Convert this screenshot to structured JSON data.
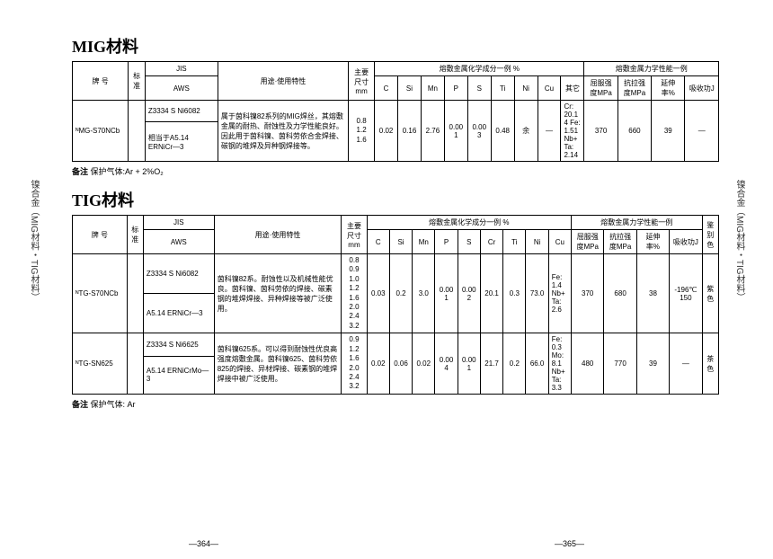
{
  "side_label_left": "镍合金（MIG材料・TIG材料）",
  "side_label_right": "镍合金（MIG材料・TIG材料）",
  "page_left": "—364—",
  "page_right": "—365—",
  "mig": {
    "title": "MIG材料",
    "note_label": "备注",
    "note_text": "保护气体:Ar + 2%O₂",
    "headers": {
      "brand": "牌 号",
      "std": "标准",
      "jis": "JIS",
      "aws": "AWS",
      "usage": "用途·使用特性",
      "size": "主要尺寸mm",
      "chem_group": "熔敷金属化学成分一例 %",
      "mech_group": "熔敷金属力学性能一例",
      "c": "C",
      "si": "Si",
      "mn": "Mn",
      "p": "P",
      "s": "S",
      "ti": "Ti",
      "ni": "Ni",
      "cu": "Cu",
      "other": "其它",
      "yield": "屈服强度MPa",
      "tensile": "抗拉强度MPa",
      "elong": "延伸率%",
      "impact": "吸收功J"
    },
    "row": {
      "brand": "ᴺMG-S70NCb",
      "jis": "Z3334 S Ni6082",
      "aws": "相当于A5.14 ERNiCr—3",
      "usage": "属于茵科镍82系列的MIG焊丝，其熔敷金属的耐热、耐蚀性及力学性能良好。因此用于茵科镍、茵科劳依合金焊接、碳钢的堆焊及异种钢焊接等。",
      "size": "0.8\n1.2\n1.6",
      "c": "0.02",
      "si": "0.16",
      "mn": "2.76",
      "p": "0.001",
      "s": "0.003",
      "ti": "0.48",
      "ni": "余",
      "cu": "—",
      "other": "Cr: 20.14 Fe: 1.51 Nb+Ta: 2.14",
      "yield": "370",
      "tensile": "660",
      "elong": "39",
      "impact": "—"
    }
  },
  "tig": {
    "title": "TIG材料",
    "note_label": "备注",
    "note_text": "保护气体: Ar",
    "headers": {
      "brand": "牌 号",
      "std": "标准",
      "jis": "JIS",
      "aws": "AWS",
      "usage": "用途·使用特性",
      "size": "主要尺寸mm",
      "chem_group": "熔敷金属化学成分一例 %",
      "mech_group": "熔敷金属力学性能一例",
      "c": "C",
      "si": "Si",
      "mn": "Mn",
      "p": "P",
      "s": "S",
      "cr": "Cr",
      "ti": "Ti",
      "ni": "Ni",
      "cu": "Cu",
      "yield": "屈服强度MPa",
      "tensile": "抗拉强度MPa",
      "elong": "延伸率%",
      "impact": "吸收功J",
      "color": "鉴别色"
    },
    "rows": [
      {
        "brand": "ᴺTG-S70NCb",
        "jis": "Z3334 S Ni6082",
        "aws": "A5.14 ERNiCr—3",
        "usage": "茵科镍82系。耐蚀性以及机械性能优良。茵科镍、茵科劳依的焊接、碳素钢的堆焊焊接、异种焊接等被广泛使用。",
        "size": "0.8\n0.9\n1.0\n1.2\n1.6\n2.0\n2.4\n3.2",
        "c": "0.03",
        "si": "0.2",
        "mn": "3.0",
        "p": "0.001",
        "s": "0.002",
        "cr": "20.1",
        "ti": "0.3",
        "ni": "73.0",
        "cu": "—",
        "other": "Fe: 1.4 Nb+Ta: 2.6",
        "yield": "370",
        "tensile": "680",
        "elong": "38",
        "impact": "-196℃ 150",
        "color": "紫色"
      },
      {
        "brand": "ᴺTG-SN625",
        "jis": "Z3334 S Ni6625",
        "aws": "A5.14 ERNiCrMo—3",
        "usage": "茵科镍625系。可以得到耐蚀性优良高强度熔敷金属。茵科镍625、茵科劳依825的焊接、异材焊接、碳素钢的堆焊焊接中被广泛使用。",
        "size": "0.9\n1.2\n1.6\n2.0\n2.4\n3.2",
        "c": "0.02",
        "si": "0.06",
        "mn": "0.02",
        "p": "0.004",
        "s": "0.001",
        "cr": "21.7",
        "ti": "0.2",
        "ni": "66.0",
        "cu": "—",
        "other": "Fe: 0.3 Mo: 8.1 Nb+Ta: 3.3",
        "yield": "480",
        "tensile": "770",
        "elong": "39",
        "impact": "—",
        "color": "茶色"
      }
    ]
  }
}
